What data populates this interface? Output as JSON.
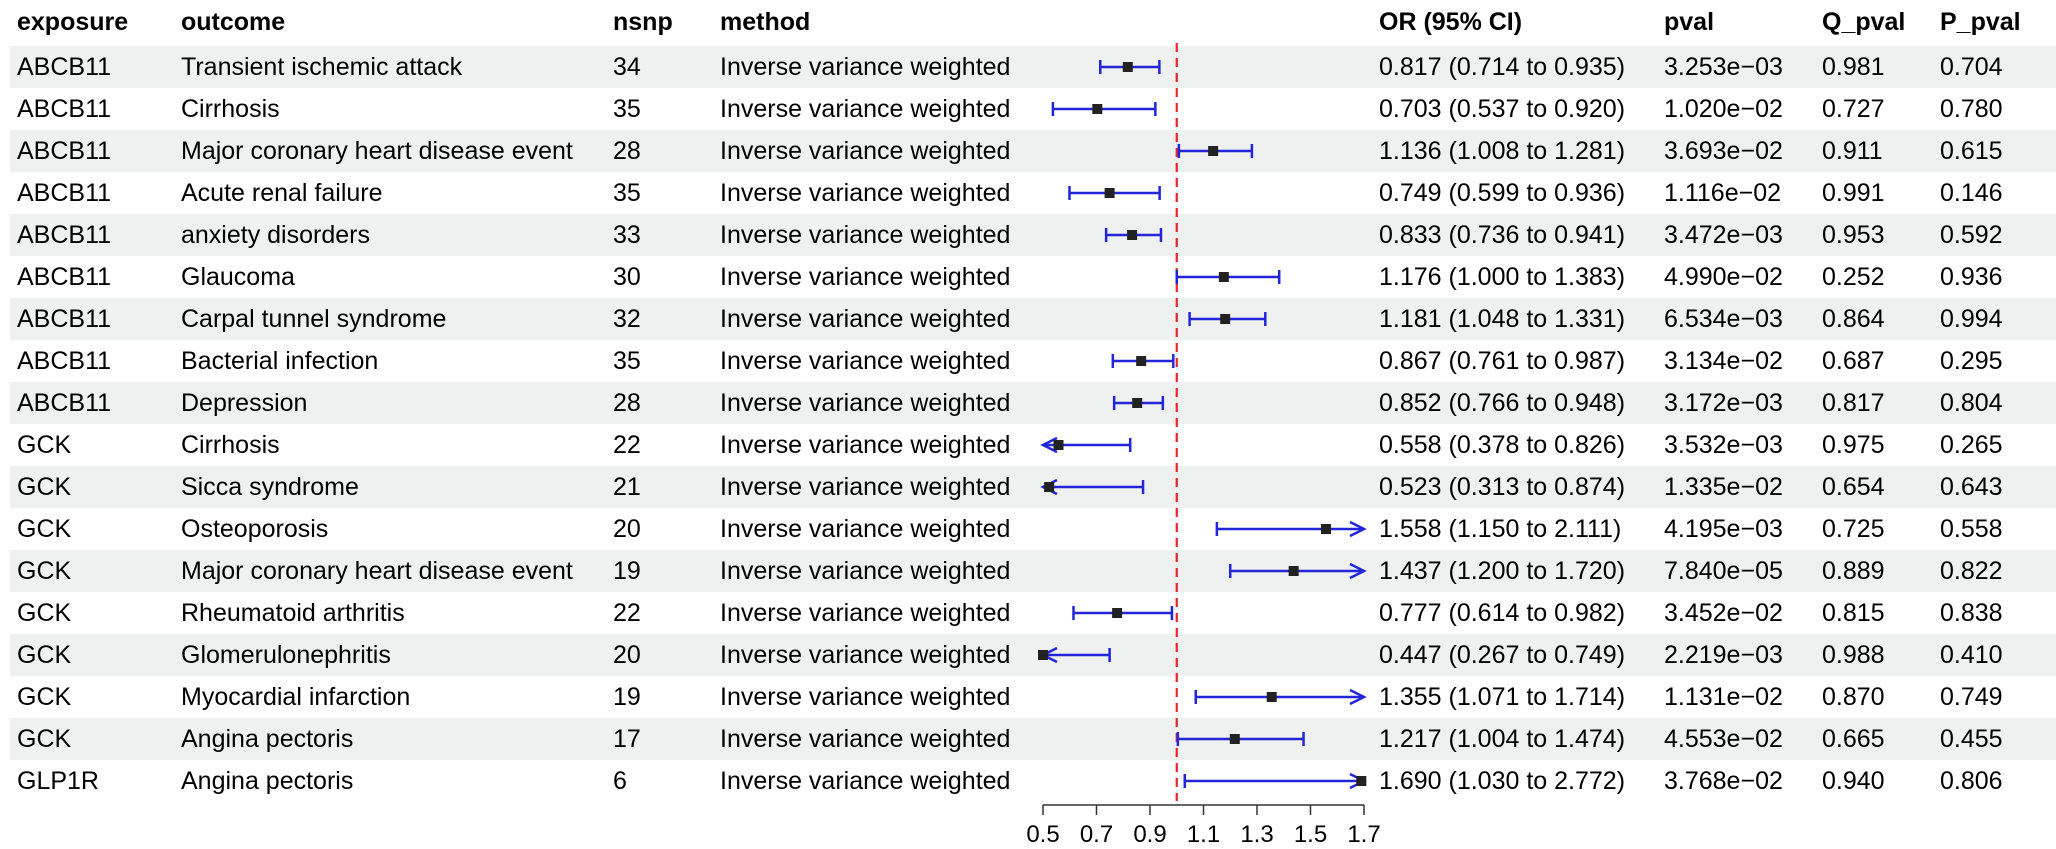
{
  "headers": {
    "exposure": "exposure",
    "outcome": "outcome",
    "nsnp": "nsnp",
    "method": "method",
    "or": "OR (95% CI)",
    "pval": "pval",
    "q_pval": "Q_pval",
    "p_pval": "P_pval"
  },
  "chart_data": {
    "type": "forest",
    "xlim": [
      0.5,
      1.7
    ],
    "x_ticks": [
      0.5,
      0.7,
      0.9,
      1.1,
      1.3,
      1.5,
      1.7
    ],
    "reference_line": 1,
    "reference_color": "#e8262b",
    "ci_color": "#2226d8",
    "point_color": "#222222",
    "shaded_row_color": "#eef1f0",
    "rows": [
      {
        "exposure": "ABCB11",
        "outcome": "Transient ischemic attack",
        "nsnp": "34",
        "method": "Inverse variance weighted",
        "or": 0.817,
        "lo": 0.714,
        "hi": 0.935,
        "or_text": "0.817 (0.714 to 0.935)",
        "pval": "3.253e−03",
        "q_pval": "0.981",
        "p_pval": "0.704"
      },
      {
        "exposure": "ABCB11",
        "outcome": "Cirrhosis",
        "nsnp": "35",
        "method": "Inverse variance weighted",
        "or": 0.703,
        "lo": 0.537,
        "hi": 0.92,
        "or_text": "0.703 (0.537 to 0.920)",
        "pval": "1.020e−02",
        "q_pval": "0.727",
        "p_pval": "0.780"
      },
      {
        "exposure": "ABCB11",
        "outcome": "Major coronary heart disease event",
        "nsnp": "28",
        "method": "Inverse variance weighted",
        "or": 1.136,
        "lo": 1.008,
        "hi": 1.281,
        "or_text": "1.136 (1.008 to 1.281)",
        "pval": "3.693e−02",
        "q_pval": "0.911",
        "p_pval": "0.615"
      },
      {
        "exposure": "ABCB11",
        "outcome": "Acute renal failure",
        "nsnp": "35",
        "method": "Inverse variance weighted",
        "or": 0.749,
        "lo": 0.599,
        "hi": 0.936,
        "or_text": "0.749 (0.599 to 0.936)",
        "pval": "1.116e−02",
        "q_pval": "0.991",
        "p_pval": "0.146"
      },
      {
        "exposure": "ABCB11",
        "outcome": "anxiety disorders",
        "nsnp": "33",
        "method": "Inverse variance weighted",
        "or": 0.833,
        "lo": 0.736,
        "hi": 0.941,
        "or_text": "0.833 (0.736 to 0.941)",
        "pval": "3.472e−03",
        "q_pval": "0.953",
        "p_pval": "0.592"
      },
      {
        "exposure": "ABCB11",
        "outcome": "Glaucoma",
        "nsnp": "30",
        "method": "Inverse variance weighted",
        "or": 1.176,
        "lo": 1.0,
        "hi": 1.383,
        "or_text": "1.176 (1.000 to 1.383)",
        "pval": "4.990e−02",
        "q_pval": "0.252",
        "p_pval": "0.936"
      },
      {
        "exposure": "ABCB11",
        "outcome": "Carpal tunnel syndrome",
        "nsnp": "32",
        "method": "Inverse variance weighted",
        "or": 1.181,
        "lo": 1.048,
        "hi": 1.331,
        "or_text": "1.181 (1.048 to 1.331)",
        "pval": "6.534e−03",
        "q_pval": "0.864",
        "p_pval": "0.994"
      },
      {
        "exposure": "ABCB11",
        "outcome": "Bacterial infection",
        "nsnp": "35",
        "method": "Inverse variance weighted",
        "or": 0.867,
        "lo": 0.761,
        "hi": 0.987,
        "or_text": "0.867 (0.761 to 0.987)",
        "pval": "3.134e−02",
        "q_pval": "0.687",
        "p_pval": "0.295"
      },
      {
        "exposure": "ABCB11",
        "outcome": "Depression",
        "nsnp": "28",
        "method": "Inverse variance weighted",
        "or": 0.852,
        "lo": 0.766,
        "hi": 0.948,
        "or_text": "0.852 (0.766 to 0.948)",
        "pval": "3.172e−03",
        "q_pval": "0.817",
        "p_pval": "0.804"
      },
      {
        "exposure": "GCK",
        "outcome": "Cirrhosis",
        "nsnp": "22",
        "method": "Inverse variance weighted",
        "or": 0.558,
        "lo": 0.378,
        "hi": 0.826,
        "or_text": "0.558 (0.378 to 0.826)",
        "pval": "3.532e−03",
        "q_pval": "0.975",
        "p_pval": "0.265"
      },
      {
        "exposure": "GCK",
        "outcome": "Sicca syndrome",
        "nsnp": "21",
        "method": "Inverse variance weighted",
        "or": 0.523,
        "lo": 0.313,
        "hi": 0.874,
        "or_text": "0.523 (0.313 to 0.874)",
        "pval": "1.335e−02",
        "q_pval": "0.654",
        "p_pval": "0.643"
      },
      {
        "exposure": "GCK",
        "outcome": "Osteoporosis",
        "nsnp": "20",
        "method": "Inverse variance weighted",
        "or": 1.558,
        "lo": 1.15,
        "hi": 2.111,
        "or_text": "1.558 (1.150 to 2.111)",
        "pval": "4.195e−03",
        "q_pval": "0.725",
        "p_pval": "0.558"
      },
      {
        "exposure": "GCK",
        "outcome": "Major coronary heart disease event",
        "nsnp": "19",
        "method": "Inverse variance weighted",
        "or": 1.437,
        "lo": 1.2,
        "hi": 1.72,
        "or_text": "1.437 (1.200 to 1.720)",
        "pval": "7.840e−05",
        "q_pval": "0.889",
        "p_pval": "0.822"
      },
      {
        "exposure": "GCK",
        "outcome": "Rheumatoid arthritis",
        "nsnp": "22",
        "method": "Inverse variance weighted",
        "or": 0.777,
        "lo": 0.614,
        "hi": 0.982,
        "or_text": "0.777 (0.614 to 0.982)",
        "pval": "3.452e−02",
        "q_pval": "0.815",
        "p_pval": "0.838"
      },
      {
        "exposure": "GCK",
        "outcome": "Glomerulonephritis",
        "nsnp": "20",
        "method": "Inverse variance weighted",
        "or": 0.447,
        "lo": 0.267,
        "hi": 0.749,
        "or_text": "0.447 (0.267 to 0.749)",
        "pval": "2.219e−03",
        "q_pval": "0.988",
        "p_pval": "0.410"
      },
      {
        "exposure": "GCK",
        "outcome": "Myocardial infarction",
        "nsnp": "19",
        "method": "Inverse variance weighted",
        "or": 1.355,
        "lo": 1.071,
        "hi": 1.714,
        "or_text": "1.355 (1.071 to 1.714)",
        "pval": "1.131e−02",
        "q_pval": "0.870",
        "p_pval": "0.749"
      },
      {
        "exposure": "GCK",
        "outcome": "Angina pectoris",
        "nsnp": "17",
        "method": "Inverse variance weighted",
        "or": 1.217,
        "lo": 1.004,
        "hi": 1.474,
        "or_text": "1.217 (1.004 to 1.474)",
        "pval": "4.553e−02",
        "q_pval": "0.665",
        "p_pval": "0.455"
      },
      {
        "exposure": "GLP1R",
        "outcome": "Angina pectoris",
        "nsnp": "6",
        "method": "Inverse variance weighted",
        "or": 1.69,
        "lo": 1.03,
        "hi": 2.772,
        "or_text": "1.690 (1.030 to 2.772)",
        "pval": "3.768e−02",
        "q_pval": "0.940",
        "p_pval": "0.806"
      }
    ]
  }
}
